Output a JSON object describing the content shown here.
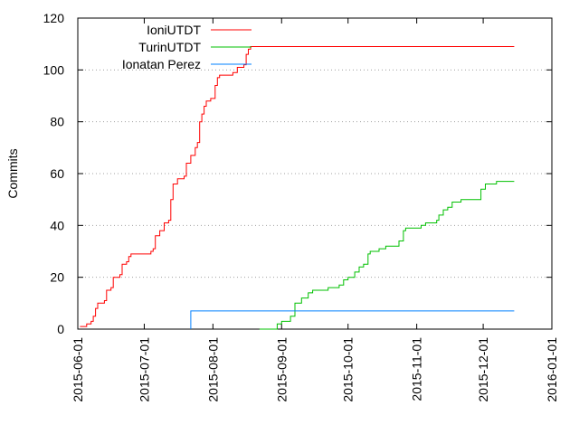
{
  "chart_data": {
    "type": "line",
    "title": "",
    "xlabel": "",
    "ylabel": "Commits",
    "xlim": [
      "2015-06-01",
      "2016-01-01"
    ],
    "ylim": [
      0,
      120
    ],
    "xticks": [
      "2015-06-01",
      "2015-07-01",
      "2015-08-01",
      "2015-09-01",
      "2015-10-01",
      "2015-11-01",
      "2015-12-01",
      "2016-01-01"
    ],
    "yticks": [
      0,
      20,
      40,
      60,
      80,
      100,
      120
    ],
    "grid": "horizontal dotted",
    "legend_position": "top-left",
    "series": [
      {
        "name": "IoniUTDT",
        "color": "#ff0000",
        "points": [
          [
            "2015-06-02",
            1
          ],
          [
            "2015-06-05",
            2
          ],
          [
            "2015-06-07",
            3
          ],
          [
            "2015-06-08",
            5
          ],
          [
            "2015-06-09",
            8
          ],
          [
            "2015-06-10",
            10
          ],
          [
            "2015-06-13",
            11
          ],
          [
            "2015-06-14",
            15
          ],
          [
            "2015-06-16",
            16
          ],
          [
            "2015-06-17",
            20
          ],
          [
            "2015-06-20",
            21
          ],
          [
            "2015-06-21",
            25
          ],
          [
            "2015-06-23",
            26
          ],
          [
            "2015-06-24",
            28
          ],
          [
            "2015-06-25",
            29
          ],
          [
            "2015-06-28",
            29
          ],
          [
            "2015-07-04",
            30
          ],
          [
            "2015-07-05",
            31
          ],
          [
            "2015-07-06",
            36
          ],
          [
            "2015-07-08",
            38
          ],
          [
            "2015-07-10",
            41
          ],
          [
            "2015-07-12",
            42
          ],
          [
            "2015-07-13",
            50
          ],
          [
            "2015-07-14",
            56
          ],
          [
            "2015-07-16",
            58
          ],
          [
            "2015-07-19",
            59
          ],
          [
            "2015-07-20",
            64
          ],
          [
            "2015-07-22",
            67
          ],
          [
            "2015-07-24",
            70
          ],
          [
            "2015-07-25",
            72
          ],
          [
            "2015-07-26",
            80
          ],
          [
            "2015-07-27",
            83
          ],
          [
            "2015-07-28",
            86
          ],
          [
            "2015-07-29",
            88
          ],
          [
            "2015-07-31",
            89
          ],
          [
            "2015-08-02",
            94
          ],
          [
            "2015-08-03",
            97
          ],
          [
            "2015-08-04",
            98
          ],
          [
            "2015-08-10",
            99
          ],
          [
            "2015-08-12",
            101
          ],
          [
            "2015-08-15",
            102
          ],
          [
            "2015-08-16",
            106
          ],
          [
            "2015-08-17",
            108
          ],
          [
            "2015-08-18",
            109
          ],
          [
            "2015-12-15",
            109
          ]
        ]
      },
      {
        "name": "TurinUTDT",
        "color": "#00c000",
        "points": [
          [
            "2015-08-22",
            0
          ],
          [
            "2015-08-30",
            2
          ],
          [
            "2015-09-01",
            3
          ],
          [
            "2015-09-05",
            5
          ],
          [
            "2015-09-07",
            10
          ],
          [
            "2015-09-10",
            12
          ],
          [
            "2015-09-13",
            14
          ],
          [
            "2015-09-15",
            15
          ],
          [
            "2015-09-22",
            16
          ],
          [
            "2015-09-27",
            17
          ],
          [
            "2015-09-29",
            19
          ],
          [
            "2015-10-01",
            20
          ],
          [
            "2015-10-04",
            22
          ],
          [
            "2015-10-06",
            24
          ],
          [
            "2015-10-08",
            25
          ],
          [
            "2015-10-10",
            29
          ],
          [
            "2015-10-11",
            30
          ],
          [
            "2015-10-15",
            31
          ],
          [
            "2015-10-18",
            32
          ],
          [
            "2015-10-24",
            34
          ],
          [
            "2015-10-26",
            38
          ],
          [
            "2015-10-27",
            39
          ],
          [
            "2015-11-03",
            40
          ],
          [
            "2015-11-05",
            41
          ],
          [
            "2015-11-10",
            42
          ],
          [
            "2015-11-11",
            44
          ],
          [
            "2015-11-13",
            46
          ],
          [
            "2015-11-15",
            47
          ],
          [
            "2015-11-17",
            49
          ],
          [
            "2015-11-21",
            50
          ],
          [
            "2015-11-29",
            50
          ],
          [
            "2015-11-30",
            54
          ],
          [
            "2015-12-02",
            56
          ],
          [
            "2015-12-07",
            57
          ],
          [
            "2015-12-15",
            57
          ]
        ]
      },
      {
        "name": "Ionatan Perez",
        "color": "#0080ff",
        "points": [
          [
            "2015-07-22",
            0
          ],
          [
            "2015-07-22",
            7
          ],
          [
            "2015-12-15",
            7
          ]
        ]
      }
    ]
  }
}
